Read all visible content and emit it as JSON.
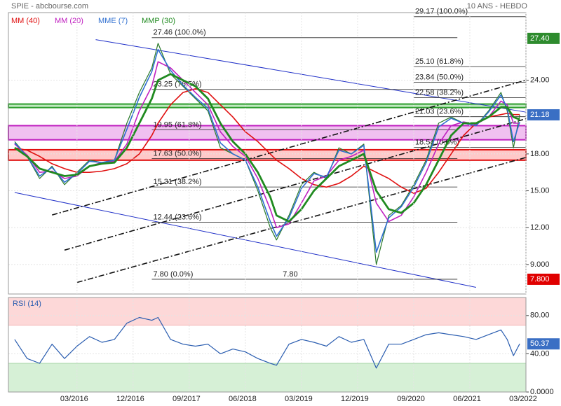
{
  "chart_data": [
    {
      "type": "line",
      "title": "SPIE - abcbourse.com",
      "subtitle": "10 ANS - HEBDO",
      "x": [
        "05/2015",
        "07/2015",
        "09/2015",
        "11/2015",
        "01/2016",
        "03/2016",
        "05/2016",
        "07/2016",
        "09/2016",
        "11/2016",
        "01/2017",
        "03/2017",
        "04/2017",
        "06/2017",
        "08/2017",
        "10/2017",
        "12/2017",
        "02/2018",
        "04/2018",
        "06/2018",
        "08/2018",
        "10/2018",
        "11/2018",
        "01/2019",
        "03/2019",
        "05/2019",
        "07/2019",
        "09/2019",
        "11/2019",
        "01/2020",
        "03/2020",
        "05/2020",
        "07/2020",
        "09/2020",
        "11/2020",
        "01/2021",
        "03/2021",
        "05/2021",
        "07/2021",
        "09/2021",
        "11/2021",
        "12/2021",
        "01/2022",
        "02/2022"
      ],
      "values": [
        19,
        17.8,
        16,
        17,
        15.5,
        16.5,
        17.5,
        17.3,
        17.5,
        20.5,
        23,
        25,
        27,
        24.5,
        23.5,
        22.5,
        21.5,
        18.5,
        18,
        17.5,
        15,
        12,
        11,
        13,
        15.5,
        16.5,
        16,
        18.5,
        18,
        18.8,
        9,
        13,
        13.8,
        15.5,
        17.5,
        20.5,
        21,
        20.5,
        20.3,
        21.5,
        23,
        21.5,
        18.5,
        21.18
      ],
      "color": "#2a7a2a",
      "series": [
        {
          "name": "MM (40)",
          "color": "#e01010",
          "values": [
            18.5,
            18.3,
            17.8,
            17.2,
            16.8,
            16.5,
            16.5,
            16.6,
            16.8,
            17.2,
            18,
            19.5,
            20.5,
            22,
            23,
            23.3,
            23,
            22,
            21,
            19.8,
            19,
            18,
            17.5,
            16.8,
            16,
            15.5,
            15.3,
            15.6,
            16.2,
            17,
            16.5,
            16,
            15.3,
            14.8,
            15.2,
            16.5,
            18,
            19.5,
            20.5,
            21,
            21.2,
            21.3,
            21.2,
            21.2
          ]
        },
        {
          "name": "MM (20)",
          "color": "#c020c0",
          "values": [
            18.8,
            17.9,
            16.5,
            16.6,
            16,
            16.2,
            17,
            17.3,
            17.4,
            18.8,
            21.5,
            23.5,
            25.5,
            25,
            24,
            23,
            22,
            19.8,
            18.6,
            17.8,
            16,
            13.5,
            12,
            12.3,
            14,
            15.8,
            16.2,
            17.5,
            17.8,
            18.3,
            14,
            12.5,
            13,
            14.5,
            16.5,
            18.8,
            20.3,
            20.6,
            20.4,
            21,
            22.3,
            22,
            20.5,
            20.5
          ]
        },
        {
          "name": "MME (7)",
          "color": "#3070d0",
          "values": [
            18.9,
            17.8,
            16.2,
            16.9,
            15.7,
            16.4,
            17.4,
            17.3,
            17.5,
            20,
            22.6,
            24.7,
            26.5,
            24.8,
            23.6,
            22.6,
            21.7,
            18.9,
            18,
            17.5,
            15.3,
            12.5,
            11.3,
            12.8,
            15.2,
            16.4,
            16.1,
            18.3,
            18,
            18.7,
            10,
            12.8,
            13.7,
            15.3,
            17.3,
            20.2,
            20.9,
            20.5,
            20.3,
            21.4,
            22.8,
            21.7,
            19,
            20.6
          ]
        },
        {
          "name": "MMP (30)",
          "color": "#208a20",
          "values": [
            18.5,
            17.8,
            16.8,
            16.5,
            16.2,
            16.3,
            17,
            17.2,
            17.3,
            18.5,
            20.5,
            22.5,
            24,
            24.5,
            24,
            23.5,
            22.5,
            20.5,
            19,
            18,
            16.5,
            14.5,
            13,
            12.5,
            13.5,
            15,
            16,
            17,
            17.5,
            18,
            15,
            13.5,
            13.2,
            14,
            15.5,
            17.5,
            19.5,
            20.5,
            20.5,
            21,
            21.8,
            21.8,
            21,
            20.8
          ]
        }
      ],
      "xlim": [
        "04/2015",
        "03/2022"
      ],
      "ylim": [
        6.6,
        29.5
      ],
      "yticks": [
        {
          "value": 9,
          "label": "9.000"
        },
        {
          "value": 12,
          "label": "12.00"
        },
        {
          "value": 15,
          "label": "15.00"
        },
        {
          "value": 18,
          "label": "18.00"
        },
        {
          "value": 24,
          "label": "24.00"
        }
      ],
      "grid": true,
      "markers": [
        {
          "value": 27.4,
          "label": "27.40",
          "color": "#2e8b2e"
        },
        {
          "value": 21.18,
          "label": "21.18",
          "color": "#3a6fc4"
        },
        {
          "value": 7.8,
          "label": "7.800",
          "color": "#e00000"
        }
      ],
      "zones": [
        {
          "low": 21.77,
          "high": 22.06,
          "color": "#2e9e2e",
          "fill": "#bfe8bf"
        },
        {
          "low": 19.15,
          "high": 20.3,
          "color": "#c020c0",
          "fill": "#f0c0f0"
        },
        {
          "low": 17.49,
          "high": 18.34,
          "color": "#e01010",
          "fill": "#ffc8c8"
        }
      ],
      "trendlines": [
        {
          "x1": "06/2016",
          "y1": 27.3,
          "x2": "03/2022",
          "y2": 21.4,
          "color": "#2030c8",
          "dash": false
        },
        {
          "x1": "05/2015",
          "y1": 14.86,
          "x2": "07/2021",
          "y2": 7.14,
          "color": "#2030c8",
          "dash": false
        },
        {
          "x1": "11/2015",
          "y1": 13.03,
          "x2": "03/2022",
          "y2": 24,
          "color": "#111111",
          "dash": true
        },
        {
          "x1": "01/2016",
          "y1": 10.17,
          "x2": "03/2022",
          "y2": 20.86,
          "color": "#111111",
          "dash": true
        },
        {
          "x1": "03/2016",
          "y1": 7.54,
          "x2": "03/2022",
          "y2": 17.71,
          "color": "#111111",
          "dash": true
        }
      ],
      "fibonacci": [
        {
          "from": "03/2017",
          "to": "04/2021",
          "levels": [
            {
              "value": 27.46,
              "label": "27.46  (100.0%)"
            },
            {
              "value": 23.25,
              "label": "23.25  (76.5%)"
            },
            {
              "value": 19.95,
              "label": "19.95  (61.8%)"
            },
            {
              "value": 17.63,
              "label": "17.63  (50.0%)"
            },
            {
              "value": 15.31,
              "label": "15.31  (38.2%)"
            },
            {
              "value": 12.44,
              "label": "12.44  (23.6%)"
            },
            {
              "value": 7.8,
              "label": "7.80  (0.0%)"
            }
          ]
        },
        {
          "from": "09/2020",
          "to": "03/2022",
          "levels": [
            {
              "value": 29.17,
              "label": "29.17  (100.0%)"
            },
            {
              "value": 25.1,
              "label": "25.10  (61.8%)"
            },
            {
              "value": 23.84,
              "label": "23.84  (50.0%)"
            },
            {
              "value": 22.58,
              "label": "22.58  (38.2%)"
            },
            {
              "value": 21.03,
              "label": "21.03  (23.6%)"
            },
            {
              "value": 18.54,
              "label": "18.54  (0.0%)"
            }
          ]
        }
      ],
      "annotations": [
        {
          "x": "12/2018",
          "value": 7.8,
          "label": "7.80"
        }
      ]
    },
    {
      "type": "line",
      "title": "RSI (14)",
      "x": [
        "05/2015",
        "07/2015",
        "09/2015",
        "11/2015",
        "01/2016",
        "03/2016",
        "05/2016",
        "07/2016",
        "09/2016",
        "11/2016",
        "01/2017",
        "03/2017",
        "04/2017",
        "06/2017",
        "08/2017",
        "10/2017",
        "12/2017",
        "02/2018",
        "04/2018",
        "06/2018",
        "08/2018",
        "10/2018",
        "11/2018",
        "01/2019",
        "03/2019",
        "05/2019",
        "07/2019",
        "09/2019",
        "11/2019",
        "01/2020",
        "03/2020",
        "05/2020",
        "07/2020",
        "09/2020",
        "11/2020",
        "01/2021",
        "03/2021",
        "05/2021",
        "07/2021",
        "09/2021",
        "11/2021",
        "12/2021",
        "01/2022",
        "02/2022"
      ],
      "values": [
        55,
        35,
        30,
        50,
        35,
        48,
        58,
        52,
        55,
        72,
        78,
        75,
        78,
        55,
        50,
        48,
        50,
        40,
        45,
        42,
        35,
        30,
        28,
        50,
        55,
        52,
        48,
        58,
        52,
        55,
        25,
        50,
        50,
        55,
        60,
        62,
        60,
        58,
        55,
        60,
        65,
        55,
        38,
        50.37
      ],
      "color": "#2a5db0",
      "xlim": [
        "04/2015",
        "03/2022"
      ],
      "xticks": [
        "03/2016",
        "12/2016",
        "09/2017",
        "06/2018",
        "03/2019",
        "12/2019",
        "09/2020",
        "06/2021",
        "03/2022"
      ],
      "ylim": [
        0,
        98.9
      ],
      "yticks": [
        {
          "value": 80,
          "label": "80.00"
        },
        {
          "value": 40,
          "label": "40.00"
        },
        {
          "value": 0,
          "label": "0.0000"
        }
      ],
      "grid": true,
      "markers": [
        {
          "value": 50.37,
          "label": "50.37",
          "color": "#3a6fc4"
        }
      ],
      "zones": [
        {
          "low": 70,
          "high": 98.9,
          "color": "#f4b0b0",
          "fill": "#fdd8d8"
        },
        {
          "low": 0,
          "high": 30,
          "color": "#a8d8a8",
          "fill": "#d6f0d6"
        }
      ]
    }
  ]
}
